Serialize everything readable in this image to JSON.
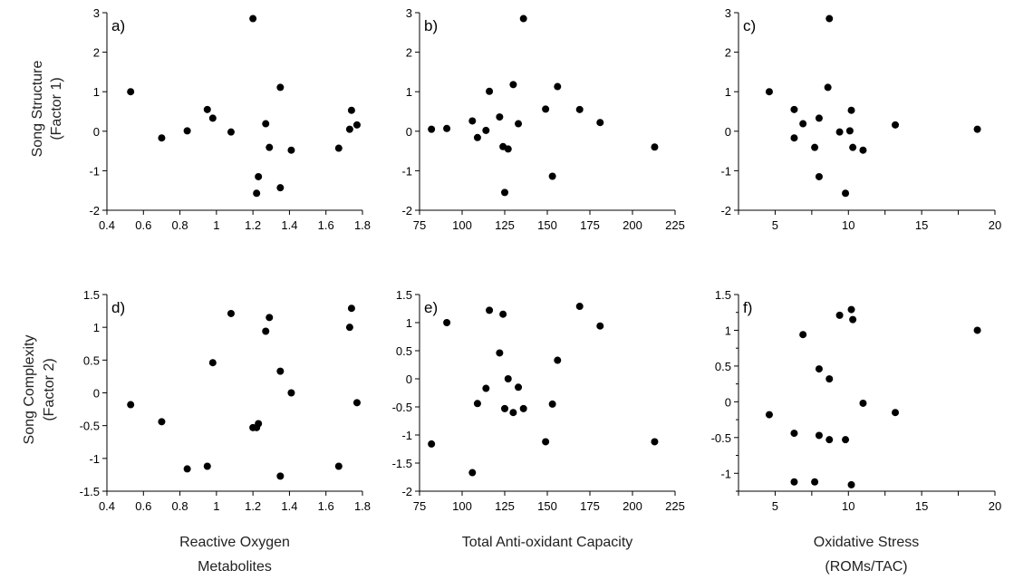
{
  "y_titles": {
    "row1": [
      "Song Structure",
      "(Factor 1)"
    ],
    "row2": [
      "Song Complexity",
      "(Factor 2)"
    ]
  },
  "x_titles": {
    "col1": [
      "Reactive Oxygen",
      "Metabolites"
    ],
    "col2": [
      "Total Anti-oxidant Capacity"
    ],
    "col3": [
      "Oxidative Stress",
      "(ROMs/TAC)"
    ]
  },
  "chart_data": [
    {
      "type": "scatter",
      "panel": "a)",
      "xlabel": "",
      "ylabel": "",
      "xlim": [
        0.4,
        1.8
      ],
      "ylim": [
        -2,
        3
      ],
      "xticks": [
        0.4,
        0.6,
        0.8,
        1.0,
        1.2,
        1.4,
        1.6,
        1.8
      ],
      "xtick_labels": [
        "0.4",
        "0.6",
        "0.8",
        "1",
        "1.2",
        "1.4",
        "1.6",
        "1.8"
      ],
      "yticks": [
        -2,
        -1,
        0,
        1,
        2,
        3
      ],
      "ytick_labels": [
        "-2",
        "-1",
        "0",
        "1",
        "2",
        "3"
      ],
      "points": [
        [
          0.53,
          1.0
        ],
        [
          0.7,
          -0.17
        ],
        [
          0.84,
          0.01
        ],
        [
          0.95,
          0.55
        ],
        [
          0.98,
          0.33
        ],
        [
          1.08,
          -0.02
        ],
        [
          1.2,
          2.85
        ],
        [
          1.22,
          -1.57
        ],
        [
          1.23,
          -1.15
        ],
        [
          1.27,
          0.19
        ],
        [
          1.29,
          -0.41
        ],
        [
          1.35,
          1.11
        ],
        [
          1.35,
          -1.43
        ],
        [
          1.41,
          -0.48
        ],
        [
          1.67,
          -0.43
        ],
        [
          1.73,
          0.05
        ],
        [
          1.74,
          0.53
        ],
        [
          1.77,
          0.16
        ]
      ]
    },
    {
      "type": "scatter",
      "panel": "b)",
      "xlabel": "",
      "ylabel": "",
      "xlim": [
        75,
        225
      ],
      "ylim": [
        -2,
        3
      ],
      "xticks": [
        75,
        100,
        125,
        150,
        175,
        200,
        225
      ],
      "xtick_labels": [
        "75",
        "100",
        "125",
        "150",
        "175",
        "200",
        "225"
      ],
      "yticks": [
        -2,
        -1,
        0,
        1,
        2,
        3
      ],
      "ytick_labels": [
        "-2",
        "-1",
        "0",
        "1",
        "2",
        "3"
      ],
      "points": [
        [
          82,
          0.05
        ],
        [
          91,
          0.07
        ],
        [
          106,
          0.26
        ],
        [
          109,
          -0.16
        ],
        [
          114,
          0.02
        ],
        [
          116,
          1.01
        ],
        [
          122,
          0.36
        ],
        [
          124,
          -0.39
        ],
        [
          125,
          -1.55
        ],
        [
          127,
          -0.45
        ],
        [
          130,
          1.18
        ],
        [
          133,
          0.19
        ],
        [
          136,
          2.85
        ],
        [
          149,
          0.56
        ],
        [
          153,
          -1.14
        ],
        [
          156,
          1.13
        ],
        [
          169,
          0.55
        ],
        [
          181,
          0.22
        ],
        [
          213,
          -0.4
        ]
      ]
    },
    {
      "type": "scatter",
      "panel": "c)",
      "xlabel": "",
      "ylabel": "",
      "xlim": [
        2.5,
        20
      ],
      "ylim": [
        -2,
        3
      ],
      "xticks": [
        2.5,
        5,
        7.5,
        10,
        12.5,
        15,
        17.5,
        20
      ],
      "xtick_labels": [
        "",
        "5",
        "",
        "10",
        "",
        "15",
        "",
        "20"
      ],
      "yticks": [
        -2,
        -1,
        0,
        1,
        2,
        3
      ],
      "ytick_labels": [
        "-2",
        "-1",
        "0",
        "1",
        "2",
        "3"
      ],
      "points": [
        [
          4.6,
          1.0
        ],
        [
          6.3,
          0.55
        ],
        [
          6.3,
          -0.17
        ],
        [
          6.9,
          0.19
        ],
        [
          7.7,
          -0.41
        ],
        [
          8.0,
          0.33
        ],
        [
          8.0,
          -1.15
        ],
        [
          8.6,
          1.11
        ],
        [
          8.7,
          2.85
        ],
        [
          9.4,
          -0.02
        ],
        [
          9.8,
          -1.57
        ],
        [
          10.1,
          0.01
        ],
        [
          10.2,
          0.53
        ],
        [
          10.3,
          -0.41
        ],
        [
          11.0,
          -0.48
        ],
        [
          13.2,
          0.16
        ],
        [
          18.8,
          0.05
        ]
      ]
    },
    {
      "type": "scatter",
      "panel": "d)",
      "xlabel": "",
      "ylabel": "",
      "xlim": [
        0.4,
        1.8
      ],
      "ylim": [
        -1.5,
        1.5
      ],
      "xticks": [
        0.4,
        0.6,
        0.8,
        1.0,
        1.2,
        1.4,
        1.6,
        1.8
      ],
      "xtick_labels": [
        "0.4",
        "0.6",
        "0.8",
        "1",
        "1.2",
        "1.4",
        "1.6",
        "1.8"
      ],
      "yticks": [
        -1.5,
        -1,
        -0.5,
        0,
        0.5,
        1,
        1.5
      ],
      "ytick_labels": [
        "-1.5",
        "-1",
        "-0.5",
        "0",
        "0.5",
        "1",
        "1.5"
      ],
      "points": [
        [
          0.53,
          -0.18
        ],
        [
          0.7,
          -0.44
        ],
        [
          0.84,
          -1.16
        ],
        [
          0.95,
          -1.12
        ],
        [
          0.98,
          0.46
        ],
        [
          1.08,
          1.21
        ],
        [
          1.2,
          -0.53
        ],
        [
          1.22,
          -0.53
        ],
        [
          1.23,
          -0.47
        ],
        [
          1.27,
          0.94
        ],
        [
          1.29,
          1.15
        ],
        [
          1.35,
          0.33
        ],
        [
          1.35,
          -1.27
        ],
        [
          1.41,
          0.0
        ],
        [
          1.67,
          -1.12
        ],
        [
          1.73,
          1.0
        ],
        [
          1.74,
          1.29
        ],
        [
          1.77,
          -0.15
        ]
      ]
    },
    {
      "type": "scatter",
      "panel": "e)",
      "xlabel": "",
      "ylabel": "",
      "xlim": [
        75,
        225
      ],
      "ylim": [
        -2,
        1.5
      ],
      "xticks": [
        75,
        100,
        125,
        150,
        175,
        200,
        225
      ],
      "xtick_labels": [
        "75",
        "100",
        "125",
        "150",
        "175",
        "200",
        "225"
      ],
      "yticks": [
        -2,
        -1.5,
        -1,
        -0.5,
        0,
        0.5,
        1,
        1.5
      ],
      "ytick_labels": [
        "-2",
        "-1.5",
        "-1",
        "-0.5",
        "0",
        "0.5",
        "1",
        "1.5"
      ],
      "points": [
        [
          82,
          -1.16
        ],
        [
          91,
          1.0
        ],
        [
          106,
          -1.67
        ],
        [
          109,
          -0.44
        ],
        [
          114,
          -0.17
        ],
        [
          116,
          1.22
        ],
        [
          122,
          0.46
        ],
        [
          124,
          1.15
        ],
        [
          125,
          -0.53
        ],
        [
          127,
          0.0
        ],
        [
          130,
          -0.6
        ],
        [
          133,
          -0.15
        ],
        [
          136,
          -0.53
        ],
        [
          153,
          -0.45
        ],
        [
          149,
          -1.12
        ],
        [
          156,
          0.33
        ],
        [
          169,
          1.29
        ],
        [
          181,
          0.94
        ],
        [
          213,
          -1.12
        ]
      ]
    },
    {
      "type": "scatter",
      "panel": "f)",
      "xlabel": "",
      "ylabel": "",
      "xlim": [
        2.5,
        20
      ],
      "ylim": [
        -1.25,
        1.5
      ],
      "xticks": [
        2.5,
        5,
        7.5,
        10,
        12.5,
        15,
        17.5,
        20
      ],
      "xtick_labels": [
        "",
        "5",
        "",
        "10",
        "",
        "15",
        "",
        "20"
      ],
      "yticks": [
        -1,
        -0.5,
        0,
        0.5,
        1,
        1.5
      ],
      "ytick_labels": [
        "-1",
        "-0.5",
        "0",
        "0.5",
        "1",
        "1.5"
      ],
      "minor_yticks": [
        -1.25,
        -0.75,
        -0.25,
        0.25,
        0.75,
        1.25
      ],
      "points": [
        [
          4.6,
          -0.18
        ],
        [
          6.3,
          -0.44
        ],
        [
          6.3,
          -1.12
        ],
        [
          6.9,
          0.94
        ],
        [
          7.7,
          -1.12
        ],
        [
          8.0,
          0.46
        ],
        [
          8.0,
          -0.47
        ],
        [
          8.7,
          0.32
        ],
        [
          8.7,
          -0.53
        ],
        [
          9.4,
          1.21
        ],
        [
          9.8,
          -0.53
        ],
        [
          10.2,
          1.29
        ],
        [
          10.3,
          1.15
        ],
        [
          10.2,
          -1.16
        ],
        [
          11.0,
          -0.02
        ],
        [
          13.2,
          -0.15
        ],
        [
          18.8,
          1.0
        ]
      ]
    }
  ]
}
